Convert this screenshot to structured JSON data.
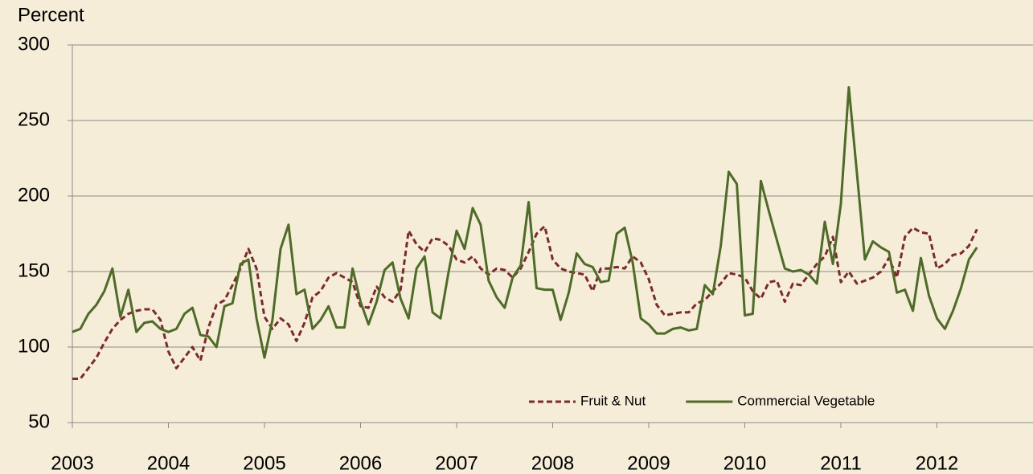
{
  "chart_data": {
    "type": "line",
    "y_label": "Percent",
    "x": [
      2003,
      2003.083,
      2003.167,
      2003.25,
      2003.333,
      2003.417,
      2003.5,
      2003.583,
      2003.667,
      2003.75,
      2003.833,
      2003.917,
      2004,
      2004.083,
      2004.167,
      2004.25,
      2004.333,
      2004.417,
      2004.5,
      2004.583,
      2004.667,
      2004.75,
      2004.833,
      2004.917,
      2005,
      2005.083,
      2005.167,
      2005.25,
      2005.333,
      2005.417,
      2005.5,
      2005.583,
      2005.667,
      2005.75,
      2005.833,
      2005.917,
      2006,
      2006.083,
      2006.167,
      2006.25,
      2006.333,
      2006.417,
      2006.5,
      2006.583,
      2006.667,
      2006.75,
      2006.833,
      2006.917,
      2007,
      2007.083,
      2007.167,
      2007.25,
      2007.333,
      2007.417,
      2007.5,
      2007.583,
      2007.667,
      2007.75,
      2007.833,
      2007.917,
      2008,
      2008.083,
      2008.167,
      2008.25,
      2008.333,
      2008.417,
      2008.5,
      2008.583,
      2008.667,
      2008.75,
      2008.833,
      2008.917,
      2009,
      2009.083,
      2009.167,
      2009.25,
      2009.333,
      2009.417,
      2009.5,
      2009.583,
      2009.667,
      2009.75,
      2009.833,
      2009.917,
      2010,
      2010.083,
      2010.167,
      2010.25,
      2010.333,
      2010.417,
      2010.5,
      2010.583,
      2010.667,
      2010.75,
      2010.833,
      2010.917,
      2011,
      2011.083,
      2011.167,
      2011.25,
      2011.333,
      2011.417,
      2011.5,
      2011.583,
      2011.667,
      2011.75,
      2011.833,
      2011.917,
      2012,
      2012.083,
      2012.167,
      2012.25,
      2012.333,
      2012.417
    ],
    "series": [
      {
        "name": "Fruit & Nut",
        "color": "#7a2b2b",
        "dash": true,
        "values": [
          79,
          79,
          86,
          93,
          103,
          112,
          118,
          122,
          124,
          125,
          125,
          118,
          97,
          86,
          93,
          100,
          91,
          113,
          128,
          131,
          141,
          152,
          165,
          152,
          120,
          112,
          119,
          115,
          104,
          116,
          133,
          137,
          146,
          149,
          146,
          143,
          127,
          126,
          140,
          133,
          130,
          138,
          177,
          168,
          163,
          172,
          171,
          167,
          158,
          156,
          160,
          152,
          148,
          152,
          151,
          146,
          152,
          163,
          175,
          180,
          158,
          152,
          150,
          149,
          148,
          137,
          152,
          152,
          153,
          152,
          160,
          156,
          145,
          128,
          121,
          122,
          123,
          123,
          129,
          131,
          137,
          142,
          149,
          148,
          146,
          137,
          132,
          143,
          144,
          130,
          142,
          141,
          148,
          155,
          160,
          173,
          143,
          150,
          142,
          144,
          146,
          150,
          159,
          146,
          173,
          179,
          176,
          175,
          152,
          155,
          161,
          162,
          167,
          178
        ]
      },
      {
        "name": "Commercial Vegetable",
        "color": "#4e6b28",
        "dash": false,
        "values": [
          110,
          112,
          122,
          128,
          137,
          152,
          120,
          138,
          110,
          116,
          117,
          112,
          110,
          112,
          122,
          126,
          108,
          107,
          100,
          127,
          129,
          155,
          158,
          119,
          93,
          118,
          165,
          181,
          135,
          138,
          112,
          118,
          127,
          113,
          113,
          152,
          130,
          115,
          130,
          151,
          156,
          132,
          119,
          152,
          160,
          123,
          119,
          150,
          177,
          165,
          192,
          181,
          144,
          133,
          126,
          146,
          154,
          196,
          139,
          138,
          138,
          118,
          136,
          162,
          155,
          153,
          143,
          144,
          175,
          179,
          156,
          119,
          115,
          109,
          109,
          112,
          113,
          111,
          112,
          141,
          135,
          167,
          216,
          208,
          121,
          122,
          210,
          190,
          171,
          152,
          150,
          151,
          148,
          142,
          183,
          155,
          195,
          272,
          215,
          158,
          170,
          166,
          163,
          136,
          138,
          124,
          159,
          134,
          119,
          112,
          124,
          139,
          158,
          166
        ]
      }
    ],
    "xlim": [
      2003,
      2013
    ],
    "xticks": [
      2003,
      2004,
      2005,
      2006,
      2007,
      2008,
      2009,
      2010,
      2011,
      2012
    ],
    "ylim": [
      50,
      300
    ],
    "yticks": [
      50,
      100,
      150,
      200,
      250,
      300
    ],
    "grid": true,
    "legend": "lower right"
  }
}
